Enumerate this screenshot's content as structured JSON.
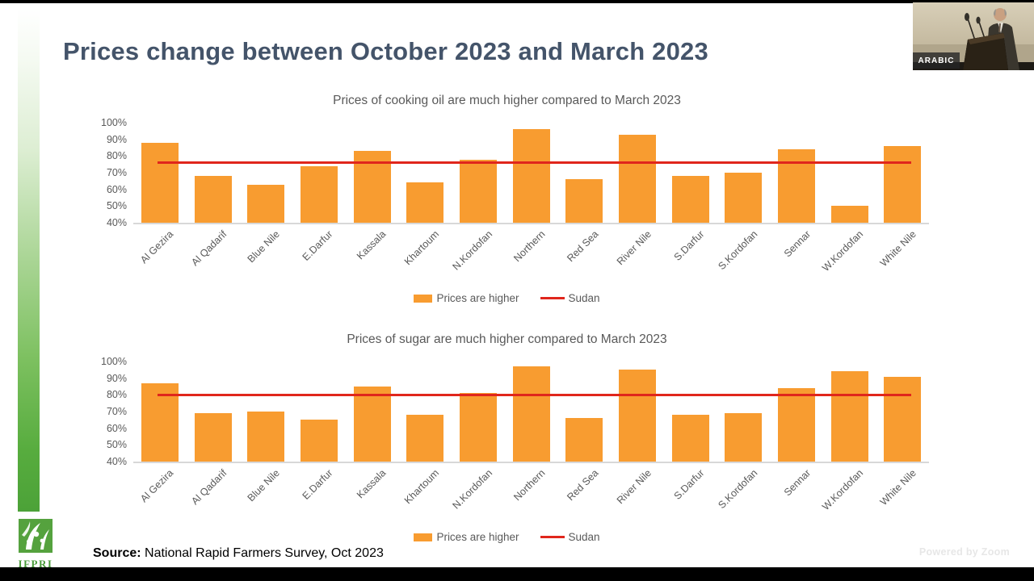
{
  "slide": {
    "title": "Prices change between October 2023 and March 2023",
    "source_label": "Source:",
    "source_text": "National Rapid Farmers Survey, Oct 2023"
  },
  "branding": {
    "logo_text": "IFPRI",
    "watermark": "Powered by Zoom"
  },
  "video_overlay": {
    "language_badge": "ARABIC"
  },
  "colors": {
    "bar_orange": "#F89C30",
    "line_red": "#E0261C",
    "title_text": "#44546A",
    "chart_text": "#595959",
    "axis_gray": "#D8D8D8",
    "sidebar_green": "#4CA238"
  },
  "chart_data": [
    {
      "type": "bar",
      "title": "Prices of cooking oil are much higher compared to March 2023",
      "categories": [
        "Al Gezira",
        "Al Qadarif",
        "Blue Nile",
        "E.Darfur",
        "Kassala",
        "Khartoum",
        "N.Kordofan",
        "Northern",
        "Red Sea",
        "River Nile",
        "S.Darfur",
        "S.Kordofan",
        "Sennar",
        "W.Kordofan",
        "White Nile"
      ],
      "series": [
        {
          "name": "Prices are higher",
          "type": "bar",
          "values": [
            88,
            68,
            63,
            74,
            83,
            64,
            78,
            96,
            66,
            93,
            68,
            70,
            84,
            50,
            86
          ]
        },
        {
          "name": "Sudan",
          "type": "line",
          "value": 76
        }
      ],
      "ylim": [
        40,
        100
      ],
      "yticks": [
        "100%",
        "90%",
        "80%",
        "70%",
        "60%",
        "50%",
        "40%"
      ],
      "legend_position": "bottom",
      "grid": false
    },
    {
      "type": "bar",
      "title": "Prices of sugar are much higher compared to March 2023",
      "categories": [
        "Al Gezira",
        "Al Qadarif",
        "Blue Nile",
        "E.Darfur",
        "Kassala",
        "Khartoum",
        "N.Kordofan",
        "Northern",
        "Red Sea",
        "River Nile",
        "S.Darfur",
        "S.Kordofan",
        "Sennar",
        "W.Kordofan",
        "White Nile"
      ],
      "series": [
        {
          "name": "Prices are higher",
          "type": "bar",
          "values": [
            87,
            69,
            70,
            65,
            85,
            68,
            81,
            97,
            66,
            95,
            68,
            69,
            84,
            94,
            91
          ]
        },
        {
          "name": "Sudan",
          "type": "line",
          "value": 80
        }
      ],
      "ylim": [
        40,
        100
      ],
      "yticks": [
        "100%",
        "90%",
        "80%",
        "70%",
        "60%",
        "50%",
        "40%"
      ],
      "legend_position": "bottom",
      "grid": false
    }
  ]
}
